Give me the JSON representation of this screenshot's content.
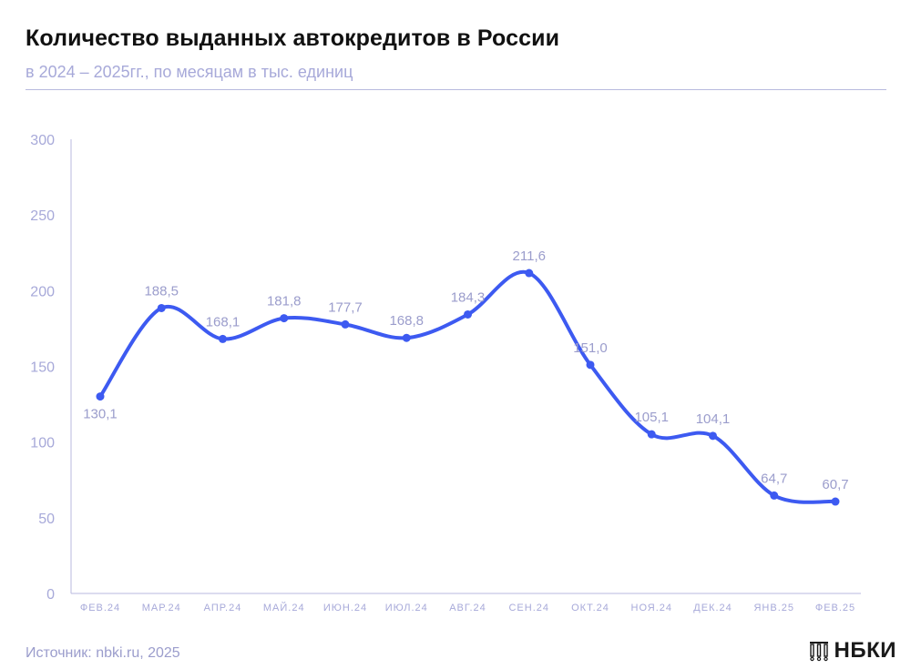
{
  "header": {
    "title": "Количество выданных автокредитов в России",
    "subtitle": "в 2024 – 2025гг., по месяцам в тыс. единиц"
  },
  "footer": {
    "source": "Источник: nbki.ru, 2025",
    "logo_text": "НБКИ"
  },
  "colors": {
    "line": "#3d5af1",
    "axis_text": "#a7a9d9",
    "data_label": "#9b9dcc",
    "axis_line": "#b8badf"
  },
  "chart_data": {
    "type": "line",
    "title": "Количество выданных автокредитов в России",
    "subtitle": "в 2024 – 2025гг., по месяцам в тыс. единиц",
    "categories": [
      "ФЕВ.24",
      "МАР.24",
      "АПР.24",
      "МАЙ.24",
      "ИЮН.24",
      "ИЮЛ.24",
      "АВГ.24",
      "СЕН.24",
      "ОКТ.24",
      "НОЯ.24",
      "ДЕК.24",
      "ЯНВ.25",
      "ФЕВ.25"
    ],
    "values": [
      130.1,
      188.5,
      168.1,
      181.8,
      177.7,
      168.8,
      184.3,
      211.6,
      151.0,
      105.1,
      104.1,
      64.7,
      60.7
    ],
    "data_labels": [
      "130,1",
      "188,5",
      "168,1",
      "181,8",
      "177,7",
      "168,8",
      "184,3",
      "211,6",
      "151,0",
      "105,1",
      "104,1",
      "64,7",
      "60,7"
    ],
    "label_position": [
      "below",
      "above",
      "above",
      "above",
      "above",
      "above",
      "above",
      "above",
      "above",
      "above",
      "above",
      "above",
      "above"
    ],
    "ylim": [
      0,
      300
    ],
    "yticks": [
      0,
      50,
      100,
      150,
      200,
      250,
      300
    ],
    "xlabel": "",
    "ylabel": "",
    "grid": false,
    "legend": "none"
  }
}
